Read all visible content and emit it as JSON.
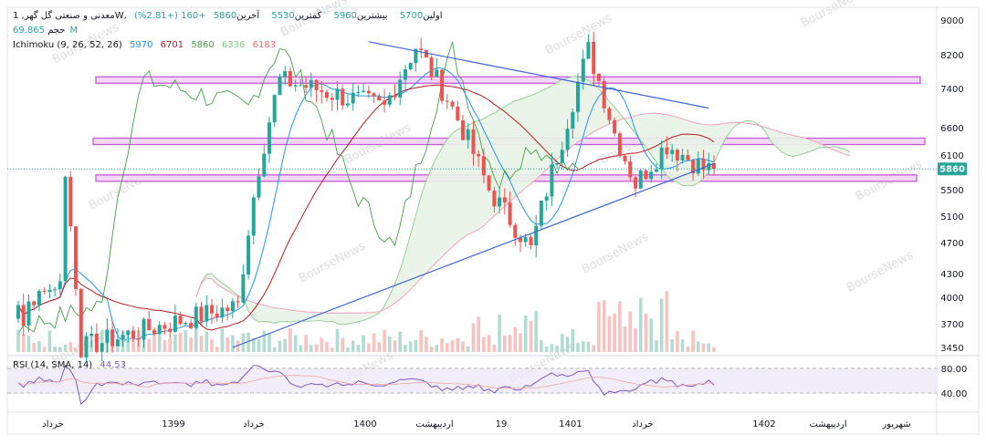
{
  "header": {
    "symbol": "معدنی و صنعتی گل گهر, 1W,",
    "items": [
      {
        "label": "اولین",
        "value": "5700"
      },
      {
        "label": "بیشترین",
        "value": "5960"
      },
      {
        "label": "کمترین",
        "value": "5530"
      },
      {
        "label": "آخرین",
        "value": "5860"
      }
    ],
    "change": "+160 (+2.81%)",
    "volume_label": "حجم",
    "volume_value": "69.865M",
    "ichimoku_label": "Ichimoku (9, 26, 52, 26)",
    "ichimoku_values": [
      "5970",
      "6701",
      "5860",
      "6336",
      "6183"
    ],
    "rsi_label": "RSI (14, SMA, 14)",
    "rsi_value": "44.53"
  },
  "watermark": "BourseNews",
  "colors": {
    "up": "#26a69a",
    "down": "#ef5350",
    "tenkan": "#2196f3",
    "kijun": "#b71c1c",
    "lagging": "#43a047",
    "span_a": "#81c784",
    "span_b": "#f48fb1",
    "trend": "#3b64d6",
    "zone": "#c55ad8",
    "rsi": "#7e57c2",
    "last_price_badge": "#26a69a"
  },
  "chart_data": {
    "type": "candlestick",
    "y_axis": {
      "ticks": [
        "9000",
        "8200",
        "7400",
        "6600",
        "6100",
        "5500",
        "5100",
        "4700",
        "4300",
        "4000",
        "3700",
        "3450"
      ],
      "last_price": "5860"
    },
    "x_axis": {
      "ticks": [
        "خرداد",
        "1399",
        "خرداد",
        "1400",
        "اردیبهشت",
        "19",
        "1401",
        "خرداد",
        "1402",
        "اردیبهشت",
        "شهریور"
      ]
    },
    "rsi_axis": {
      "ticks": [
        "80.00",
        "40.00"
      ]
    },
    "weeks": 134,
    "key_points": [
      {
        "week": 9,
        "close": 5700
      },
      {
        "week": 12,
        "close": 3450
      },
      {
        "week": 42,
        "close": 3900
      },
      {
        "week": 46,
        "close": 5900
      },
      {
        "week": 50,
        "close": 7600
      },
      {
        "week": 70,
        "close": 7000
      },
      {
        "week": 76,
        "close": 8400
      },
      {
        "week": 82,
        "close": 7200
      },
      {
        "week": 90,
        "close": 5500
      },
      {
        "week": 98,
        "close": 4600
      },
      {
        "week": 104,
        "close": 6400
      },
      {
        "week": 109,
        "close": 8300
      },
      {
        "week": 114,
        "close": 6500
      },
      {
        "week": 118,
        "close": 5600
      },
      {
        "week": 124,
        "close": 6300
      },
      {
        "week": 131,
        "close": 5860
      }
    ],
    "resistance_zones": [
      7600,
      6350,
      5700
    ],
    "trend_lines": [
      {
        "from": {
          "week": 67,
          "price": 8500
        },
        "to": {
          "week": 132,
          "price": 7000
        }
      },
      {
        "from": {
          "week": 41,
          "price": 3450
        },
        "to": {
          "week": 133,
          "price": 5950
        }
      }
    ]
  }
}
